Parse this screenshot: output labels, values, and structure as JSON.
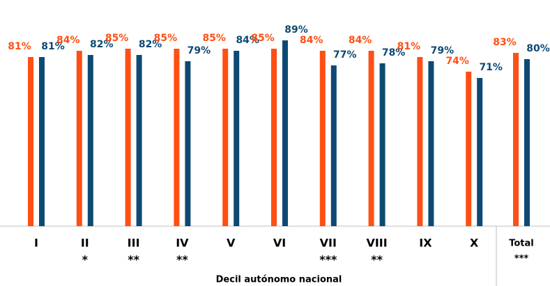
{
  "chart_data": {
    "type": "bar",
    "categories": [
      "I",
      "II",
      "III",
      "IV",
      "V",
      "VI",
      "VII",
      "VIII",
      "IX",
      "X",
      "Total"
    ],
    "significance": [
      null,
      "*",
      "**",
      "**",
      null,
      null,
      "***",
      "**",
      null,
      null,
      "***"
    ],
    "x_label": "Decil autónomo nacional",
    "ylim": [
      0,
      100
    ],
    "series": [
      {
        "color": "#ff4f14",
        "values": [
          81,
          84,
          85,
          85,
          85,
          85,
          84,
          84,
          81,
          74,
          83
        ],
        "value_labels": [
          "81%",
          "84%",
          "85%",
          "85%",
          "85%",
          "85%",
          "84%",
          "84%",
          "81%",
          "74%",
          "83%"
        ]
      },
      {
        "color": "#0d4a73",
        "values": [
          81,
          82,
          82,
          79,
          84,
          89,
          77,
          78,
          79,
          71,
          80
        ],
        "value_labels": [
          "81%",
          "82%",
          "82%",
          "79%",
          "84%",
          "89%",
          "77%",
          "78%",
          "79%",
          "71%",
          "80%"
        ]
      }
    ]
  }
}
